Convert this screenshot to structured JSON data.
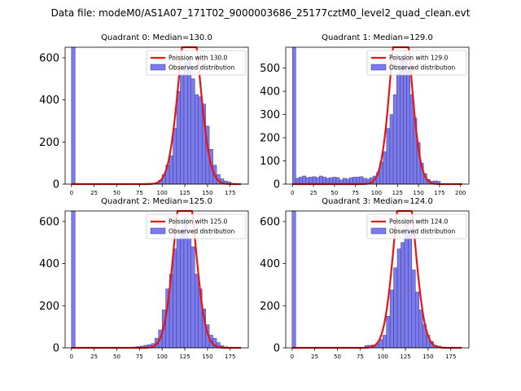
{
  "chart_data": {
    "suptitle": "Data file: modeM0/AS1A07_171T02_9000003686_25177cztM0_level2_quad_clean.evt",
    "type": "bar",
    "colors": {
      "bar": "#7b7bef",
      "bar_edge": "#3c3c7a",
      "fit": "#e81414"
    },
    "panels": [
      {
        "title": "Quadrant 0: Median=130.0",
        "xlim": [
          -7,
          195
        ],
        "ylim": [
          0,
          650
        ],
        "xticks": [
          0,
          25,
          50,
          75,
          100,
          125,
          150,
          175
        ],
        "yticks": [
          0,
          200,
          400,
          600
        ],
        "median": 130.0,
        "legend": [
          "Poission with 130.0",
          "Observed distribution"
        ],
        "bin_width": 4,
        "bars": [
          {
            "x": 0,
            "y": 650
          },
          {
            "x": 84,
            "y": 4
          },
          {
            "x": 88,
            "y": 4
          },
          {
            "x": 92,
            "y": 6
          },
          {
            "x": 96,
            "y": 18
          },
          {
            "x": 100,
            "y": 45
          },
          {
            "x": 104,
            "y": 90
          },
          {
            "x": 108,
            "y": 135
          },
          {
            "x": 112,
            "y": 265
          },
          {
            "x": 116,
            "y": 440
          },
          {
            "x": 120,
            "y": 520
          },
          {
            "x": 124,
            "y": 575
          },
          {
            "x": 128,
            "y": 600
          },
          {
            "x": 132,
            "y": 500
          },
          {
            "x": 136,
            "y": 425
          },
          {
            "x": 140,
            "y": 415
          },
          {
            "x": 144,
            "y": 380
          },
          {
            "x": 148,
            "y": 275
          },
          {
            "x": 152,
            "y": 165
          },
          {
            "x": 156,
            "y": 90
          },
          {
            "x": 160,
            "y": 45
          },
          {
            "x": 164,
            "y": 25
          },
          {
            "x": 168,
            "y": 15
          },
          {
            "x": 172,
            "y": 10
          },
          {
            "x": 176,
            "y": 4
          },
          {
            "x": 180,
            "y": 2
          }
        ]
      },
      {
        "title": "Quadrant 1: Median=129.0",
        "xlim": [
          -8,
          210
        ],
        "ylim": [
          0,
          590
        ],
        "xticks": [
          0,
          25,
          50,
          75,
          100,
          125,
          150,
          175,
          200
        ],
        "yticks": [
          0,
          100,
          200,
          300,
          400,
          500
        ],
        "median": 129.0,
        "legend": [
          "Poission with 129.0",
          "Observed distribution"
        ],
        "bin_width": 4,
        "bars": [
          {
            "x": 0,
            "y": 590
          },
          {
            "x": 4,
            "y": 25
          },
          {
            "x": 8,
            "y": 30
          },
          {
            "x": 12,
            "y": 35
          },
          {
            "x": 16,
            "y": 28
          },
          {
            "x": 20,
            "y": 30
          },
          {
            "x": 24,
            "y": 32
          },
          {
            "x": 28,
            "y": 28
          },
          {
            "x": 32,
            "y": 35
          },
          {
            "x": 36,
            "y": 30
          },
          {
            "x": 40,
            "y": 25
          },
          {
            "x": 44,
            "y": 28
          },
          {
            "x": 48,
            "y": 30
          },
          {
            "x": 52,
            "y": 28
          },
          {
            "x": 56,
            "y": 18
          },
          {
            "x": 60,
            "y": 25
          },
          {
            "x": 64,
            "y": 22
          },
          {
            "x": 68,
            "y": 28
          },
          {
            "x": 72,
            "y": 30
          },
          {
            "x": 76,
            "y": 30
          },
          {
            "x": 80,
            "y": 32
          },
          {
            "x": 84,
            "y": 25
          },
          {
            "x": 88,
            "y": 22
          },
          {
            "x": 92,
            "y": 28
          },
          {
            "x": 96,
            "y": 35
          },
          {
            "x": 100,
            "y": 50
          },
          {
            "x": 104,
            "y": 95
          },
          {
            "x": 108,
            "y": 140
          },
          {
            "x": 112,
            "y": 240
          },
          {
            "x": 116,
            "y": 300
          },
          {
            "x": 120,
            "y": 385
          },
          {
            "x": 124,
            "y": 480
          },
          {
            "x": 128,
            "y": 540
          },
          {
            "x": 132,
            "y": 560
          },
          {
            "x": 136,
            "y": 500
          },
          {
            "x": 140,
            "y": 385
          },
          {
            "x": 144,
            "y": 285
          },
          {
            "x": 148,
            "y": 180
          },
          {
            "x": 152,
            "y": 90
          },
          {
            "x": 156,
            "y": 45
          },
          {
            "x": 160,
            "y": 20
          },
          {
            "x": 164,
            "y": 12
          },
          {
            "x": 168,
            "y": 14
          },
          {
            "x": 172,
            "y": 12
          }
        ]
      },
      {
        "title": "Quadrant 2: Median=125.0",
        "xlim": [
          -7,
          195
        ],
        "ylim": [
          0,
          650
        ],
        "xticks": [
          0,
          25,
          50,
          75,
          100,
          125,
          150,
          175
        ],
        "yticks": [
          0,
          200,
          400,
          600
        ],
        "median": 125.0,
        "legend": [
          "Poission with 125.0",
          "Observed distribution"
        ],
        "bin_width": 4,
        "bars": [
          {
            "x": 0,
            "y": 650
          },
          {
            "x": 68,
            "y": 4
          },
          {
            "x": 72,
            "y": 6
          },
          {
            "x": 76,
            "y": 8
          },
          {
            "x": 80,
            "y": 12
          },
          {
            "x": 84,
            "y": 15
          },
          {
            "x": 88,
            "y": 20
          },
          {
            "x": 92,
            "y": 45
          },
          {
            "x": 96,
            "y": 85
          },
          {
            "x": 100,
            "y": 180
          },
          {
            "x": 104,
            "y": 280
          },
          {
            "x": 108,
            "y": 350
          },
          {
            "x": 112,
            "y": 470
          },
          {
            "x": 116,
            "y": 520
          },
          {
            "x": 120,
            "y": 560
          },
          {
            "x": 124,
            "y": 610
          },
          {
            "x": 128,
            "y": 520
          },
          {
            "x": 132,
            "y": 480
          },
          {
            "x": 136,
            "y": 350
          },
          {
            "x": 140,
            "y": 280
          },
          {
            "x": 144,
            "y": 185
          },
          {
            "x": 148,
            "y": 110
          },
          {
            "x": 152,
            "y": 60
          },
          {
            "x": 156,
            "y": 45
          },
          {
            "x": 160,
            "y": 25
          },
          {
            "x": 164,
            "y": 10
          },
          {
            "x": 168,
            "y": 5
          },
          {
            "x": 172,
            "y": 3
          },
          {
            "x": 176,
            "y": 2
          }
        ]
      },
      {
        "title": "Quadrant 3: Median=124.0",
        "xlim": [
          -7,
          195
        ],
        "ylim": [
          0,
          650
        ],
        "xticks": [
          0,
          25,
          50,
          75,
          100,
          125,
          150,
          175
        ],
        "yticks": [
          0,
          200,
          400,
          600
        ],
        "median": 124.0,
        "legend": [
          "Poission with 124.0",
          "Observed distribution"
        ],
        "bin_width": 4,
        "bars": [
          {
            "x": 0,
            "y": 650
          },
          {
            "x": 80,
            "y": 10
          },
          {
            "x": 84,
            "y": 12
          },
          {
            "x": 88,
            "y": 14
          },
          {
            "x": 92,
            "y": 20
          },
          {
            "x": 96,
            "y": 40
          },
          {
            "x": 100,
            "y": 60
          },
          {
            "x": 104,
            "y": 150
          },
          {
            "x": 108,
            "y": 275
          },
          {
            "x": 112,
            "y": 380
          },
          {
            "x": 116,
            "y": 470
          },
          {
            "x": 120,
            "y": 500
          },
          {
            "x": 124,
            "y": 610
          },
          {
            "x": 128,
            "y": 550
          },
          {
            "x": 132,
            "y": 370
          },
          {
            "x": 136,
            "y": 265
          },
          {
            "x": 140,
            "y": 180
          },
          {
            "x": 144,
            "y": 110
          },
          {
            "x": 148,
            "y": 60
          },
          {
            "x": 152,
            "y": 30
          },
          {
            "x": 156,
            "y": 12
          },
          {
            "x": 160,
            "y": 8
          },
          {
            "x": 164,
            "y": 4
          }
        ]
      }
    ]
  }
}
